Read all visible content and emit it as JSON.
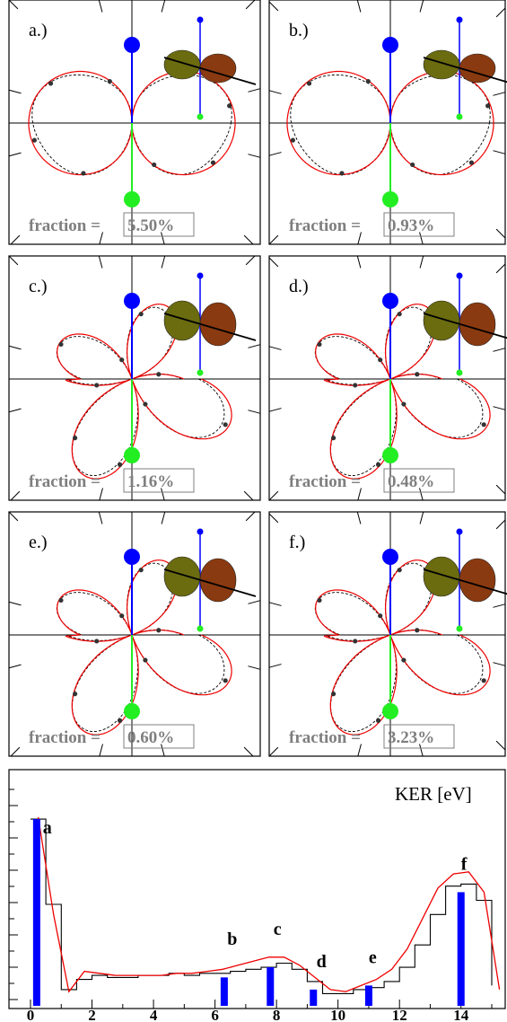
{
  "panels": [
    {
      "label": "a.)",
      "fraction_text": "fraction =",
      "fraction_value": "5.50%"
    },
    {
      "label": "b.)",
      "fraction_text": "fraction =",
      "fraction_value": "0.93%"
    },
    {
      "label": "c.)",
      "fraction_text": "fraction =",
      "fraction_value": "1.16%"
    },
    {
      "label": "d.)",
      "fraction_text": "fraction =",
      "fraction_value": "0.48%"
    },
    {
      "label": "e.)",
      "fraction_text": "fraction =",
      "fraction_value": "0.60%"
    },
    {
      "label": "f.)",
      "fraction_text": "fraction =",
      "fraction_value": "3.23%"
    }
  ],
  "histogram": {
    "axis_title": "KER [eV]",
    "xlim": [
      0,
      15
    ],
    "xticks": [
      "0",
      "2",
      "4",
      "6",
      "8",
      "10",
      "12",
      "14"
    ],
    "peak_labels": [
      {
        "text": "a",
        "x": 0.4,
        "y": 0.85
      },
      {
        "text": "b",
        "x": 6.4,
        "y": 0.3
      },
      {
        "text": "c",
        "x": 7.9,
        "y": 0.35
      },
      {
        "text": "d",
        "x": 9.3,
        "y": 0.19
      },
      {
        "text": "e",
        "x": 11.0,
        "y": 0.21
      },
      {
        "text": "f",
        "x": 14.0,
        "y": 0.67
      }
    ]
  },
  "chart_data": {
    "type": "bar",
    "title": "",
    "xlabel": "KER [eV]",
    "ylabel": "",
    "xlim": [
      0,
      15
    ],
    "ylim": [
      0,
      1
    ],
    "grid": false,
    "bars": [
      {
        "label": "a",
        "x": 0.2,
        "value": 0.92
      },
      {
        "label": "b",
        "x": 6.3,
        "value": 0.14
      },
      {
        "label": "c",
        "x": 7.8,
        "value": 0.19
      },
      {
        "label": "d",
        "x": 9.2,
        "value": 0.08
      },
      {
        "label": "e",
        "x": 11.0,
        "value": 0.1
      },
      {
        "label": "f",
        "x": 14.0,
        "value": 0.56
      }
    ],
    "histogram_x": [
      0,
      0.5,
      1,
      1.5,
      2,
      2.5,
      3,
      3.5,
      4,
      4.5,
      5,
      5.5,
      6,
      6.5,
      7,
      7.5,
      8,
      8.5,
      9,
      9.5,
      10,
      10.5,
      11,
      11.5,
      12,
      12.5,
      13,
      13.5,
      14,
      14.5,
      15
    ],
    "histogram_y": [
      0.92,
      0.5,
      0.08,
      0.13,
      0.15,
      0.14,
      0.14,
      0.15,
      0.15,
      0.16,
      0.15,
      0.16,
      0.16,
      0.17,
      0.18,
      0.19,
      0.21,
      0.18,
      0.12,
      0.06,
      0.06,
      0.08,
      0.09,
      0.12,
      0.19,
      0.3,
      0.45,
      0.59,
      0.6,
      0.52,
      0.1
    ],
    "fit_y": [
      0.93,
      0.45,
      0.07,
      0.17,
      0.16,
      0.15,
      0.15,
      0.15,
      0.15,
      0.16,
      0.16,
      0.17,
      0.18,
      0.2,
      0.22,
      0.24,
      0.24,
      0.2,
      0.14,
      0.08,
      0.07,
      0.1,
      0.13,
      0.18,
      0.28,
      0.43,
      0.58,
      0.65,
      0.66,
      0.56,
      0.08
    ]
  }
}
